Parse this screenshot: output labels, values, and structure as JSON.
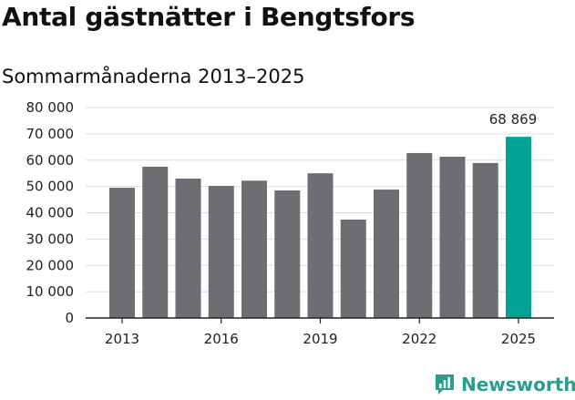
{
  "chart_data": {
    "type": "bar",
    "title": "Antal gästnätter i Bengtsfors",
    "subtitle": "Sommarmånaderna 2013–2025",
    "categories": [
      "2013",
      "2014",
      "2015",
      "2016",
      "2017",
      "2018",
      "2019",
      "2020",
      "2021",
      "2022",
      "2023",
      "2024",
      "2025"
    ],
    "values": [
      49500,
      57500,
      53000,
      50200,
      52200,
      48500,
      55000,
      37400,
      48800,
      62700,
      61300,
      58900,
      68869
    ],
    "x_tick_labels": [
      "2013",
      "2016",
      "2019",
      "2022",
      "2025"
    ],
    "y_ticks": [
      0,
      10000,
      20000,
      30000,
      40000,
      50000,
      60000,
      70000,
      80000
    ],
    "y_tick_labels": [
      "0",
      "10 000",
      "20 000",
      "30 000",
      "40 000",
      "50 000",
      "60 000",
      "70 000",
      "80 000"
    ],
    "ylim": [
      0,
      80000
    ],
    "xlabel": "",
    "ylabel": "",
    "grid": true,
    "highlight_index": 12,
    "data_labels": [
      {
        "index": 12,
        "text": "68 869"
      }
    ],
    "colors": {
      "bar": "#6e6d72",
      "highlight": "#00a396",
      "grid": "#dddddd",
      "axis": "#222222"
    }
  },
  "brand": {
    "name": "Newsworthy",
    "icon": "newsworthy-logo-icon",
    "color": "#2a9d8f"
  }
}
